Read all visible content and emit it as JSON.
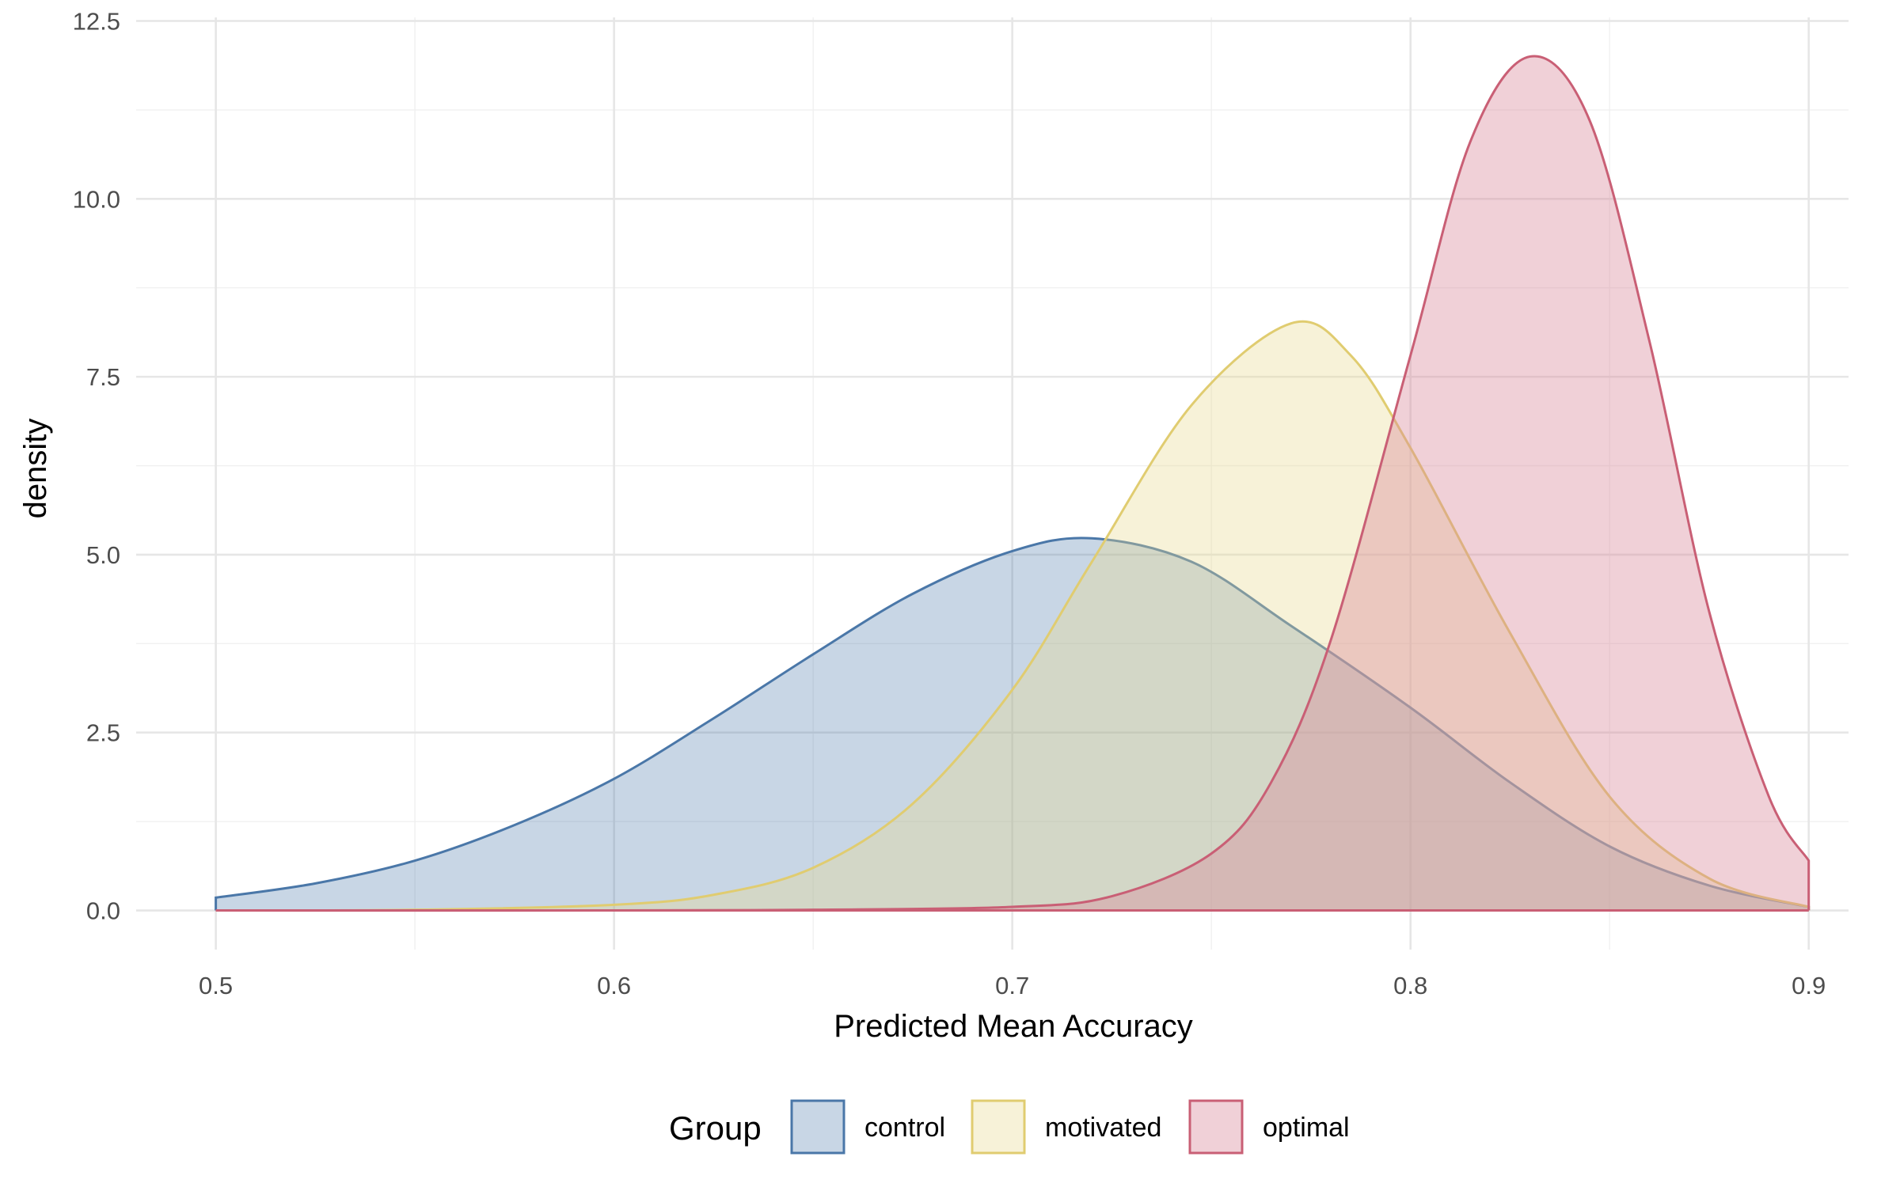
{
  "chart_data": {
    "type": "area",
    "subtype": "density",
    "xlabel": "Predicted Mean Accuracy",
    "ylabel": "density",
    "xlim": [
      0.48,
      0.91
    ],
    "ylim": [
      -0.55,
      12.55
    ],
    "x_ticks": [
      0.5,
      0.6,
      0.7,
      0.8,
      0.9
    ],
    "x_tick_labels": [
      "0.5",
      "0.6",
      "0.7",
      "0.8",
      "0.9"
    ],
    "y_ticks": [
      0,
      2.5,
      5,
      7.5,
      10,
      12.5
    ],
    "y_tick_labels": [
      "0.0",
      "2.5",
      "5.0",
      "7.5",
      "10.0",
      "12.5"
    ],
    "grid": true,
    "legend": {
      "title": "Group",
      "position": "bottom"
    },
    "series": [
      {
        "name": "control",
        "color": "#4a77a8",
        "fill_color": "#4a77a8",
        "fill_opacity": 0.3,
        "x": [
          0.5,
          0.525,
          0.55,
          0.575,
          0.6,
          0.625,
          0.65,
          0.675,
          0.7,
          0.72,
          0.745,
          0.77,
          0.8,
          0.825,
          0.85,
          0.875,
          0.9
        ],
        "y": [
          0.18,
          0.38,
          0.7,
          1.2,
          1.85,
          2.7,
          3.6,
          4.45,
          5.05,
          5.23,
          4.9,
          4.0,
          2.85,
          1.8,
          0.9,
          0.35,
          0.05
        ]
      },
      {
        "name": "motivated",
        "color": "#e0cc70",
        "fill_color": "#e8d98f",
        "fill_opacity": 0.35,
        "x": [
          0.5,
          0.55,
          0.6,
          0.625,
          0.65,
          0.675,
          0.7,
          0.72,
          0.745,
          0.77,
          0.785,
          0.8,
          0.825,
          0.85,
          0.875,
          0.9
        ],
        "y": [
          0.0,
          0.01,
          0.08,
          0.22,
          0.6,
          1.5,
          3.1,
          4.9,
          7.1,
          8.25,
          7.8,
          6.5,
          3.9,
          1.6,
          0.45,
          0.05
        ]
      },
      {
        "name": "optimal",
        "color": "#c95f75",
        "fill_color": "#d98a9c",
        "fill_opacity": 0.4,
        "x": [
          0.5,
          0.6,
          0.65,
          0.7,
          0.725,
          0.75,
          0.765,
          0.78,
          0.8,
          0.815,
          0.83,
          0.845,
          0.86,
          0.875,
          0.89,
          0.9
        ],
        "y": [
          0.0,
          0.0,
          0.01,
          0.05,
          0.2,
          0.8,
          1.8,
          3.8,
          7.8,
          10.8,
          12.0,
          11.1,
          8.0,
          4.2,
          1.6,
          0.7
        ]
      }
    ]
  }
}
